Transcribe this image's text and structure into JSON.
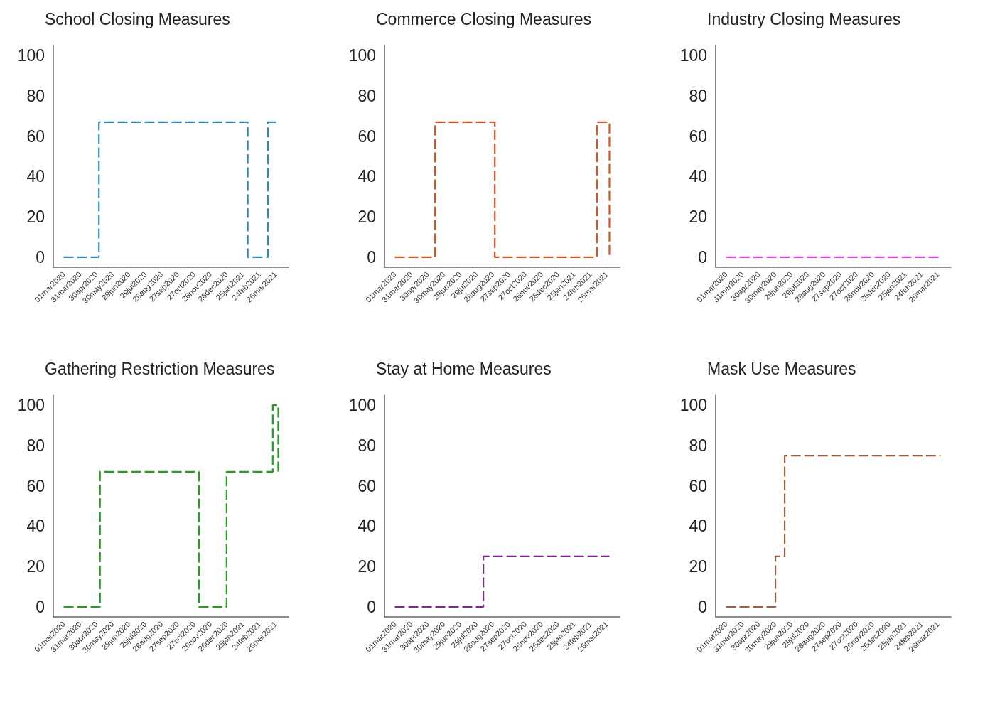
{
  "chart_data": [
    {
      "type": "step",
      "title": "School Closing Measures",
      "x": [
        "2020-03-01",
        "2020-05-05",
        "2021-02-03",
        "2021-03-12",
        "2021-03-31"
      ],
      "values": [
        0,
        67,
        0,
        67,
        67
      ],
      "color": "#2f8db5",
      "line_style": "dashed",
      "marker": "none",
      "grid": false,
      "xlim": [
        "2020-02-11",
        "2021-04-19"
      ],
      "ylim": [
        -5,
        105
      ],
      "yticks": [
        0,
        20,
        40,
        60,
        80,
        100
      ],
      "xticks": [
        {
          "value": "2020-03-01",
          "label": "01mar2020"
        },
        {
          "value": "2020-03-31",
          "label": "31mar2020"
        },
        {
          "value": "2020-04-30",
          "label": "30apr2020"
        },
        {
          "value": "2020-05-30",
          "label": "30may2020"
        },
        {
          "value": "2020-06-29",
          "label": "29jun2020"
        },
        {
          "value": "2020-07-29",
          "label": "29jul2020"
        },
        {
          "value": "2020-08-28",
          "label": "28aug2020"
        },
        {
          "value": "2020-09-27",
          "label": "27sep2020"
        },
        {
          "value": "2020-10-27",
          "label": "27oct2020"
        },
        {
          "value": "2020-11-26",
          "label": "26nov2020"
        },
        {
          "value": "2020-12-26",
          "label": "26dec2020"
        },
        {
          "value": "2021-01-25",
          "label": "25jan2021"
        },
        {
          "value": "2021-02-24",
          "label": "24feb2021"
        },
        {
          "value": "2021-03-26",
          "label": "26mar2021"
        }
      ]
    },
    {
      "type": "step",
      "title": "Commerce Closing Measures",
      "x": [
        "2020-03-01",
        "2020-05-14",
        "2020-09-01",
        "2021-03-08",
        "2021-03-31"
      ],
      "values": [
        0,
        67,
        0,
        67,
        0
      ],
      "color": "#d9531e",
      "line_style": "dashed",
      "marker": "none",
      "grid": false,
      "xlim": [
        "2020-02-11",
        "2021-04-19"
      ],
      "ylim": [
        -5,
        105
      ],
      "yticks": [
        0,
        20,
        40,
        60,
        80,
        100
      ],
      "xticks": [
        {
          "value": "2020-03-01",
          "label": "01mar2020"
        },
        {
          "value": "2020-03-31",
          "label": "31mar2020"
        },
        {
          "value": "2020-04-30",
          "label": "30apr2020"
        },
        {
          "value": "2020-05-30",
          "label": "30may2020"
        },
        {
          "value": "2020-06-29",
          "label": "29jun2020"
        },
        {
          "value": "2020-07-29",
          "label": "29jul2020"
        },
        {
          "value": "2020-08-28",
          "label": "28aug2020"
        },
        {
          "value": "2020-09-27",
          "label": "27sep2020"
        },
        {
          "value": "2020-10-27",
          "label": "27oct2020"
        },
        {
          "value": "2020-11-26",
          "label": "26nov2020"
        },
        {
          "value": "2020-12-26",
          "label": "26dec2020"
        },
        {
          "value": "2021-01-25",
          "label": "25jan2021"
        },
        {
          "value": "2021-02-24",
          "label": "24feb2021"
        },
        {
          "value": "2021-03-26",
          "label": "26mar2021"
        }
      ]
    },
    {
      "type": "step",
      "title": "Industry Closing Measures",
      "x": [
        "2020-03-01",
        "2021-03-31"
      ],
      "values": [
        0,
        0
      ],
      "color": "#e83ee8",
      "line_style": "dashed",
      "marker": "none",
      "grid": false,
      "xlim": [
        "2020-02-11",
        "2021-04-19"
      ],
      "ylim": [
        -5,
        105
      ],
      "yticks": [
        0,
        20,
        40,
        60,
        80,
        100
      ],
      "xticks": [
        {
          "value": "2020-03-01",
          "label": "01mar2020"
        },
        {
          "value": "2020-03-31",
          "label": "31mar2020"
        },
        {
          "value": "2020-04-30",
          "label": "30apr2020"
        },
        {
          "value": "2020-05-30",
          "label": "30may2020"
        },
        {
          "value": "2020-06-29",
          "label": "29jun2020"
        },
        {
          "value": "2020-07-29",
          "label": "29jul2020"
        },
        {
          "value": "2020-08-28",
          "label": "28aug2020"
        },
        {
          "value": "2020-09-27",
          "label": "27sep2020"
        },
        {
          "value": "2020-10-27",
          "label": "27oct2020"
        },
        {
          "value": "2020-11-26",
          "label": "26nov2020"
        },
        {
          "value": "2020-12-26",
          "label": "26dec2020"
        },
        {
          "value": "2021-01-25",
          "label": "25jan2021"
        },
        {
          "value": "2021-02-24",
          "label": "24feb2021"
        },
        {
          "value": "2021-03-26",
          "label": "26mar2021"
        }
      ]
    },
    {
      "type": "step",
      "title": "Gathering Restriction Measures",
      "x": [
        "2020-03-01",
        "2020-05-07",
        "2020-11-05",
        "2020-12-26",
        "2021-03-21",
        "2021-03-31"
      ],
      "values": [
        0,
        67,
        0,
        67,
        100,
        67
      ],
      "color": "#1fa01f",
      "line_style": "dashed",
      "marker": "none",
      "grid": false,
      "xlim": [
        "2020-02-11",
        "2021-04-19"
      ],
      "ylim": [
        -5,
        105
      ],
      "yticks": [
        0,
        20,
        40,
        60,
        80,
        100
      ],
      "xticks": [
        {
          "value": "2020-03-01",
          "label": "01mar2020"
        },
        {
          "value": "2020-03-31",
          "label": "31mar2020"
        },
        {
          "value": "2020-04-30",
          "label": "30apr2020"
        },
        {
          "value": "2020-05-30",
          "label": "30may2020"
        },
        {
          "value": "2020-06-29",
          "label": "29jun2020"
        },
        {
          "value": "2020-07-29",
          "label": "29jul2020"
        },
        {
          "value": "2020-08-28",
          "label": "28aug2020"
        },
        {
          "value": "2020-09-27",
          "label": "27sep2020"
        },
        {
          "value": "2020-10-27",
          "label": "27oct2020"
        },
        {
          "value": "2020-11-26",
          "label": "26nov2020"
        },
        {
          "value": "2020-12-26",
          "label": "26dec2020"
        },
        {
          "value": "2021-01-25",
          "label": "25jan2021"
        },
        {
          "value": "2021-02-24",
          "label": "24feb2021"
        },
        {
          "value": "2021-03-26",
          "label": "26mar2021"
        }
      ]
    },
    {
      "type": "step",
      "title": "Stay at Home Measures",
      "x": [
        "2020-03-01",
        "2020-08-11",
        "2021-03-31"
      ],
      "values": [
        0,
        25,
        25
      ],
      "color": "#7d2a8c",
      "line_style": "dashed",
      "marker": "none",
      "grid": false,
      "xlim": [
        "2020-02-11",
        "2021-04-19"
      ],
      "ylim": [
        -5,
        105
      ],
      "yticks": [
        0,
        20,
        40,
        60,
        80,
        100
      ],
      "xticks": [
        {
          "value": "2020-03-01",
          "label": "01mar2020"
        },
        {
          "value": "2020-03-31",
          "label": "31mar2020"
        },
        {
          "value": "2020-04-30",
          "label": "30apr2020"
        },
        {
          "value": "2020-05-30",
          "label": "30may2020"
        },
        {
          "value": "2020-06-29",
          "label": "29jun2020"
        },
        {
          "value": "2020-07-29",
          "label": "29jul2020"
        },
        {
          "value": "2020-08-28",
          "label": "28aug2020"
        },
        {
          "value": "2020-09-27",
          "label": "27sep2020"
        },
        {
          "value": "2020-10-27",
          "label": "27oct2020"
        },
        {
          "value": "2020-11-26",
          "label": "26nov2020"
        },
        {
          "value": "2020-12-26",
          "label": "26dec2020"
        },
        {
          "value": "2021-01-25",
          "label": "25jan2021"
        },
        {
          "value": "2021-02-24",
          "label": "24feb2021"
        },
        {
          "value": "2021-03-26",
          "label": "26mar2021"
        }
      ]
    },
    {
      "type": "step",
      "title": "Mask Use Measures",
      "x": [
        "2020-03-01",
        "2020-05-31",
        "2020-06-17",
        "2021-03-31"
      ],
      "values": [
        0,
        25,
        75,
        75
      ],
      "color": "#9a6040",
      "line_style": "dashed",
      "marker": "none",
      "grid": false,
      "xlim": [
        "2020-02-11",
        "2021-04-19"
      ],
      "ylim": [
        -5,
        105
      ],
      "yticks": [
        0,
        20,
        40,
        60,
        80,
        100
      ],
      "xticks": [
        {
          "value": "2020-03-01",
          "label": "01mar2020"
        },
        {
          "value": "2020-03-31",
          "label": "31mar2020"
        },
        {
          "value": "2020-04-30",
          "label": "30apr2020"
        },
        {
          "value": "2020-05-30",
          "label": "30may2020"
        },
        {
          "value": "2020-06-29",
          "label": "29jun2020"
        },
        {
          "value": "2020-07-29",
          "label": "29jul2020"
        },
        {
          "value": "2020-08-28",
          "label": "28aug2020"
        },
        {
          "value": "2020-09-27",
          "label": "27sep2020"
        },
        {
          "value": "2020-10-27",
          "label": "27oct2020"
        },
        {
          "value": "2020-11-26",
          "label": "26nov2020"
        },
        {
          "value": "2020-12-26",
          "label": "26dec2020"
        },
        {
          "value": "2021-01-25",
          "label": "25jan2021"
        },
        {
          "value": "2021-02-24",
          "label": "24feb2021"
        },
        {
          "value": "2021-03-26",
          "label": "26mar2021"
        }
      ]
    }
  ]
}
